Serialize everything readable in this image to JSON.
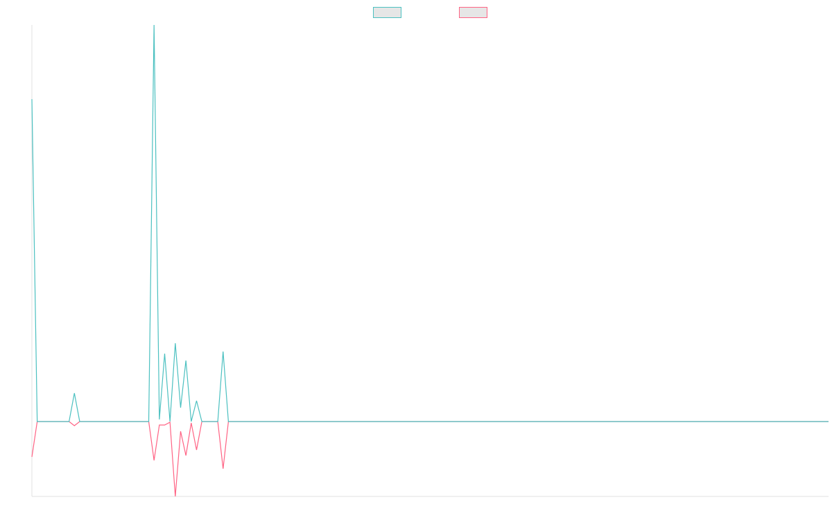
{
  "chart_data": {
    "type": "line",
    "legend": "top",
    "grid": false,
    "ylim": [
      -10.8,
      57.2
    ],
    "series": [
      {
        "color": "#4bc0c0",
        "values": [
          46.5,
          0,
          0,
          0,
          0,
          0,
          0,
          0,
          4.1,
          0,
          0,
          0,
          0,
          0,
          0,
          0,
          0,
          0,
          0,
          0,
          0,
          0,
          0,
          57.2,
          0.3,
          9.8,
          0,
          11.3,
          2,
          8.8,
          0,
          3,
          0,
          0,
          0,
          0,
          10.1,
          0,
          0,
          0,
          0,
          0,
          0,
          0,
          0,
          0,
          0,
          0,
          0,
          0,
          0,
          0,
          0,
          0,
          0,
          0,
          0,
          0,
          0,
          0,
          0,
          0,
          0,
          0,
          0,
          0,
          0,
          0,
          0,
          0,
          0,
          0,
          0,
          0,
          0,
          0,
          0,
          0,
          0,
          0,
          0,
          0,
          0,
          0,
          0,
          0,
          0,
          0,
          0,
          0,
          0,
          0,
          0,
          0,
          0,
          0,
          0,
          0,
          0,
          0,
          0,
          0,
          0,
          0,
          0,
          0,
          0,
          0,
          0,
          0,
          0,
          0,
          0,
          0,
          0,
          0,
          0,
          0,
          0,
          0,
          0,
          0,
          0,
          0,
          0,
          0,
          0,
          0,
          0,
          0,
          0,
          0,
          0,
          0,
          0,
          0,
          0,
          0,
          0,
          0,
          0,
          0,
          0,
          0,
          0,
          0,
          0,
          0,
          0,
          0,
          0
        ]
      },
      {
        "color": "#ff6384",
        "values": [
          -5.1,
          0,
          0,
          0,
          0,
          0,
          0,
          0,
          -0.6,
          0,
          0,
          0,
          0,
          0,
          0,
          0,
          0,
          0,
          0,
          0,
          0,
          0,
          0,
          -5.6,
          -0.5,
          -0.5,
          -0.1,
          -10.8,
          -1.4,
          -4.9,
          -0.2,
          -4.1,
          0,
          0,
          0,
          0,
          -6.8,
          0,
          0,
          0,
          0,
          0,
          0,
          0,
          0,
          0,
          0,
          0,
          0,
          0,
          0,
          0,
          0,
          0,
          0,
          0,
          0,
          0,
          0,
          0,
          0,
          0,
          0,
          0,
          0,
          0,
          0,
          0,
          0,
          0,
          0,
          0,
          0,
          0,
          0,
          0,
          0,
          0,
          0,
          0,
          0,
          0,
          0,
          0,
          0,
          0,
          0,
          0,
          0,
          0,
          0,
          0,
          0,
          0,
          0,
          0,
          0,
          0,
          0,
          0,
          0,
          0,
          0,
          0,
          0,
          0,
          0,
          0,
          0,
          0,
          0,
          0,
          0,
          0,
          0,
          0,
          0,
          0,
          0,
          0,
          0,
          0,
          0,
          0,
          0,
          0,
          0,
          0,
          0,
          0,
          0,
          0,
          0,
          0,
          0,
          0,
          0,
          0,
          0,
          0,
          0,
          0,
          0,
          0,
          0,
          0,
          0,
          0,
          0,
          0,
          0
        ]
      }
    ]
  }
}
